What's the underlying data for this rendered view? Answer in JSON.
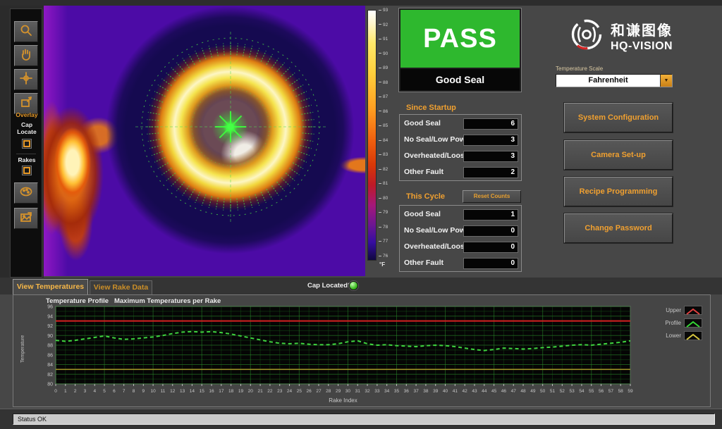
{
  "toolbar": {
    "overlay_label": "Overlay",
    "cap_locate_label": "Cap Locate",
    "rakes_label": "Rakes",
    "icons": [
      "zoom-icon",
      "pan-hand-icon",
      "crosshair-icon",
      "region-select-icon",
      "palette-icon",
      "snapshot-icon"
    ]
  },
  "colorbar": {
    "ticks": [
      93,
      92,
      91,
      90,
      89,
      88,
      87,
      86,
      85,
      84,
      83,
      82,
      81,
      80,
      79,
      78,
      77,
      76
    ],
    "unit": "°F"
  },
  "result": {
    "status": "PASS",
    "message": "Good Seal",
    "pass_color": "#2eb82e"
  },
  "since_startup": {
    "title": "Since Startup",
    "rows": [
      {
        "label": "Good Seal",
        "value": "6"
      },
      {
        "label": "No Seal/Low Power",
        "value": "3"
      },
      {
        "label": "Overheated/Loose",
        "value": "3"
      },
      {
        "label": "Other Fault",
        "value": "2"
      }
    ]
  },
  "this_cycle": {
    "title": "This Cycle",
    "reset_button": "Reset Counts",
    "rows": [
      {
        "label": "Good Seal",
        "value": "1"
      },
      {
        "label": "No Seal/Low Power",
        "value": "0"
      },
      {
        "label": "Overheated/Loose",
        "value": "0"
      },
      {
        "label": "Other Fault",
        "value": "0"
      }
    ]
  },
  "brand": {
    "cn": "和谦图像",
    "en": "HQ-VISION"
  },
  "temperature_scale": {
    "label": "Temperature Scale",
    "value": "Fahrenheit"
  },
  "nav_buttons": [
    "System Configuration",
    "Camera Set-up",
    "Recipe Programming",
    "Change Password"
  ],
  "tabs": [
    {
      "label": "View Temperatures",
      "active": true
    },
    {
      "label": "View Rake Data",
      "active": false
    }
  ],
  "cap_located": {
    "label": "Cap Located?",
    "led_color": "#35c81e"
  },
  "status_bar": {
    "text": "Status OK"
  },
  "chart_data": {
    "type": "line",
    "title": "Temperature Profile   Maximum Temperatures per Rake",
    "xlabel": "Rake Index",
    "ylabel": "Temperature",
    "xlim": [
      0,
      59
    ],
    "ylim": [
      80,
      96
    ],
    "yticks": [
      96,
      94,
      92,
      90,
      88,
      86,
      84,
      82,
      80
    ],
    "grid": true,
    "plot_bg": "#050505",
    "legend_position": "right",
    "x": [
      0,
      1,
      2,
      3,
      4,
      5,
      6,
      7,
      8,
      9,
      10,
      11,
      12,
      13,
      14,
      15,
      16,
      17,
      18,
      19,
      20,
      21,
      22,
      23,
      24,
      25,
      26,
      27,
      28,
      29,
      30,
      31,
      32,
      33,
      34,
      35,
      36,
      37,
      38,
      39,
      40,
      41,
      42,
      43,
      44,
      45,
      46,
      47,
      48,
      49,
      50,
      51,
      52,
      53,
      54,
      55,
      56,
      57,
      58,
      59
    ],
    "series": [
      {
        "name": "Upper",
        "color": "#d42020",
        "width": 2,
        "constant": 93
      },
      {
        "name": "Profile",
        "color": "#3fd43f",
        "width": 2,
        "dash": "5 4",
        "values": [
          89.0,
          88.8,
          89.0,
          89.3,
          89.6,
          89.9,
          89.5,
          89.2,
          89.3,
          89.5,
          89.7,
          90.0,
          90.4,
          90.7,
          90.8,
          90.7,
          90.8,
          90.6,
          90.3,
          89.9,
          89.5,
          89.1,
          88.7,
          88.4,
          88.3,
          88.4,
          88.2,
          88.1,
          88.1,
          88.3,
          88.7,
          88.9,
          88.3,
          88.0,
          88.1,
          87.9,
          87.8,
          87.7,
          87.9,
          88.0,
          87.9,
          87.7,
          87.4,
          87.1,
          86.9,
          87.1,
          87.4,
          87.3,
          87.2,
          87.3,
          87.5,
          87.6,
          87.8,
          88.0,
          88.1,
          88.0,
          88.2,
          88.4,
          88.6,
          88.9
        ]
      },
      {
        "name": "Lower",
        "color": "#a89a28",
        "width": 1.5,
        "constant": 83
      }
    ],
    "legend": [
      {
        "label": "Upper",
        "color": "#e04040"
      },
      {
        "label": "Profile",
        "color": "#35d835"
      },
      {
        "label": "Lower",
        "color": "#d8c840"
      }
    ]
  }
}
